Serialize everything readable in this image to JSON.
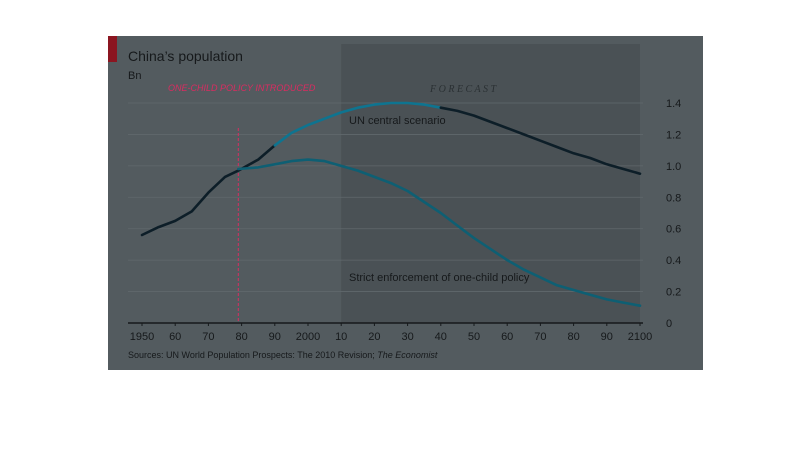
{
  "chart_data": {
    "type": "line",
    "title": "China’s population",
    "ylabel": "Bn",
    "ylim": [
      0,
      1.4
    ],
    "yticks": [
      "1.4",
      "1.2",
      "1.0",
      "0.8",
      "0.6",
      "0.4",
      "0.2",
      "0"
    ],
    "xlim": [
      1950,
      2100
    ],
    "xticks": [
      "1950",
      "60",
      "70",
      "80",
      "90",
      "2000",
      "10",
      "20",
      "30",
      "40",
      "50",
      "60",
      "70",
      "80",
      "90",
      "2100"
    ],
    "forecast_label": "FORECAST",
    "forecast_start": 2010,
    "policy_marker": {
      "year": 1979,
      "label": "ONE-CHILD POLICY INTRODUCED"
    },
    "series": [
      {
        "name": "actual",
        "color": "#0d1e28",
        "points": [
          [
            1950,
            0.56
          ],
          [
            1955,
            0.61
          ],
          [
            1960,
            0.65
          ],
          [
            1965,
            0.71
          ],
          [
            1970,
            0.83
          ],
          [
            1975,
            0.93
          ],
          [
            1979,
            0.97
          ],
          [
            1985,
            1.04
          ],
          [
            1990,
            1.13
          ]
        ]
      },
      {
        "name": "UN central scenario",
        "color": "#0e7490",
        "points": [
          [
            1990,
            1.13
          ],
          [
            1995,
            1.21
          ],
          [
            2000,
            1.26
          ],
          [
            2005,
            1.3
          ],
          [
            2010,
            1.34
          ],
          [
            2015,
            1.37
          ],
          [
            2020,
            1.39
          ],
          [
            2025,
            1.4
          ],
          [
            2030,
            1.4
          ],
          [
            2035,
            1.39
          ],
          [
            2040,
            1.37
          ]
        ]
      },
      {
        "name": "UN central scenario (forecast)",
        "color": "#0d1e28",
        "points": [
          [
            2040,
            1.37
          ],
          [
            2045,
            1.35
          ],
          [
            2050,
            1.32
          ],
          [
            2055,
            1.28
          ],
          [
            2060,
            1.24
          ],
          [
            2065,
            1.2
          ],
          [
            2070,
            1.16
          ],
          [
            2075,
            1.12
          ],
          [
            2080,
            1.08
          ],
          [
            2085,
            1.05
          ],
          [
            2090,
            1.01
          ],
          [
            2095,
            0.98
          ],
          [
            2100,
            0.95
          ]
        ]
      },
      {
        "name": "Strict enforcement of one-child policy",
        "color": "#0e5f73",
        "points": [
          [
            1979,
            0.98
          ],
          [
            1985,
            0.99
          ],
          [
            1990,
            1.01
          ],
          [
            1995,
            1.03
          ],
          [
            2000,
            1.04
          ],
          [
            2005,
            1.03
          ],
          [
            2010,
            1.0
          ],
          [
            2015,
            0.97
          ],
          [
            2020,
            0.93
          ],
          [
            2025,
            0.89
          ],
          [
            2030,
            0.84
          ],
          [
            2035,
            0.77
          ],
          [
            2040,
            0.7
          ],
          [
            2045,
            0.62
          ],
          [
            2050,
            0.54
          ],
          [
            2055,
            0.47
          ],
          [
            2060,
            0.4
          ],
          [
            2065,
            0.34
          ],
          [
            2070,
            0.29
          ],
          [
            2075,
            0.24
          ],
          [
            2080,
            0.21
          ],
          [
            2085,
            0.18
          ],
          [
            2090,
            0.15
          ],
          [
            2095,
            0.13
          ],
          [
            2100,
            0.11
          ]
        ]
      }
    ],
    "annotations": {
      "un_central": "UN central scenario",
      "strict": "Strict enforcement of one-child policy"
    },
    "source": "Sources: UN World Population Prospects: The 2010 Revision; ",
    "source_italic": "The Economist"
  }
}
